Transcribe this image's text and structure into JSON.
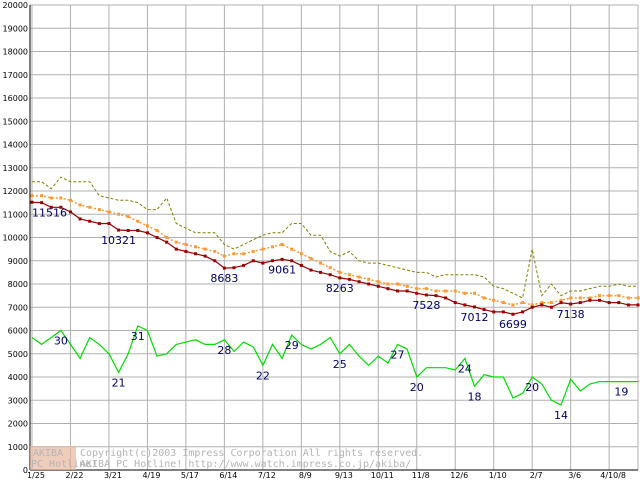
{
  "watermark": {
    "logo_top": "AKIBA",
    "logo_bottom": "PC Hotline!",
    "line1": "Copyright(c)2003 Impress Corporation All rights reserved.",
    "line2": "AKIBA PC Hotline!  http://www.watch.impress.co.jp/akiba/"
  },
  "colors": {
    "grid": "#b0b0b0",
    "red": "#990000",
    "orange": "#ff9933",
    "olive": "#808000",
    "green": "#00dd00",
    "label": "#000066"
  },
  "chart_data": {
    "type": "line",
    "title": "",
    "xlabel": "",
    "ylabel": "",
    "ylim": [
      0,
      20000
    ],
    "yticks": [
      0,
      1000,
      2000,
      3000,
      4000,
      5000,
      6000,
      7000,
      8000,
      9000,
      10000,
      11000,
      12000,
      13000,
      14000,
      15000,
      16000,
      17000,
      18000,
      19000,
      20000
    ],
    "xtick_labels": [
      "1/25",
      "2/22",
      "3/21",
      "4/19",
      "5/17",
      "6/14",
      "7/12",
      "8/9",
      "9/13",
      "10/11",
      "11/8",
      "12/6",
      "1/10",
      "2/7",
      "3/6",
      "4/10/8"
    ],
    "n_points": 64,
    "xtick_index": [
      0,
      4,
      8,
      12,
      16,
      20,
      24,
      28,
      32,
      36,
      40,
      44,
      48,
      52,
      56,
      60
    ],
    "grid": true,
    "series": [
      {
        "name": "",
        "style": "dashed",
        "color": "#808000",
        "values": [
          12400,
          12400,
          12100,
          12600,
          12400,
          12400,
          12400,
          11800,
          11700,
          11600,
          11600,
          11500,
          11200,
          11200,
          11700,
          10600,
          10400,
          10200,
          10200,
          10200,
          9700,
          9500,
          9700,
          9900,
          10100,
          10200,
          10200,
          10600,
          10600,
          10100,
          10100,
          9400,
          9200,
          9400,
          9000,
          8900,
          8900,
          8800,
          8700,
          8600,
          8500,
          8500,
          8300,
          8400,
          8400,
          8400,
          8400,
          8300,
          7900,
          7800,
          7600,
          7400,
          9500,
          7500,
          8000,
          7500,
          7700,
          7700,
          7800,
          7900,
          7900,
          8000,
          7900,
          7900
        ]
      },
      {
        "name": "",
        "style": "dotted-markers",
        "color": "#ff9933",
        "values": [
          11800,
          11800,
          11700,
          11700,
          11600,
          11400,
          11300,
          11200,
          11100,
          11000,
          10900,
          10700,
          10500,
          10300,
          10000,
          9800,
          9700,
          9600,
          9500,
          9400,
          9200,
          9300,
          9300,
          9400,
          9500,
          9600,
          9700,
          9500,
          9300,
          9100,
          8900,
          8700,
          8500,
          8400,
          8300,
          8200,
          8100,
          8000,
          8000,
          7900,
          7800,
          7800,
          7700,
          7700,
          7700,
          7600,
          7600,
          7400,
          7300,
          7200,
          7100,
          7200,
          7100,
          7200,
          7200,
          7300,
          7400,
          7400,
          7400,
          7500,
          7500,
          7500,
          7400,
          7400
        ]
      },
      {
        "name": "",
        "style": "solid-markers",
        "color": "#990000",
        "values": [
          11516,
          11500,
          11300,
          11300,
          11100,
          10800,
          10700,
          10600,
          10600,
          10321,
          10300,
          10300,
          10200,
          10000,
          9800,
          9500,
          9400,
          9300,
          9200,
          9000,
          8683,
          8700,
          8800,
          9000,
          8900,
          9000,
          9061,
          9000,
          8800,
          8600,
          8500,
          8400,
          8263,
          8200,
          8100,
          8000,
          7900,
          7800,
          7700,
          7700,
          7600,
          7528,
          7500,
          7400,
          7200,
          7100,
          7012,
          6900,
          6800,
          6800,
          6699,
          6800,
          7000,
          7100,
          7000,
          7200,
          7138,
          7200,
          7300,
          7300,
          7200,
          7200,
          7100,
          7100
        ]
      },
      {
        "name": "",
        "style": "solid",
        "color": "#00dd00",
        "values": [
          5700,
          5400,
          5700,
          6000,
          5400,
          4800,
          5700,
          5400,
          5000,
          4200,
          5000,
          6200,
          6000,
          4900,
          5000,
          5400,
          5500,
          5600,
          5400,
          5400,
          5600,
          5100,
          5500,
          5300,
          4500,
          5400,
          4800,
          5800,
          5400,
          5200,
          5400,
          5700,
          5000,
          5400,
          4900,
          4500,
          4900,
          4600,
          5400,
          5200,
          4000,
          4400,
          4400,
          4400,
          4300,
          4800,
          3600,
          4100,
          4000,
          4000,
          3100,
          3300,
          4000,
          3700,
          3000,
          2800,
          3900,
          3400,
          3700,
          3800,
          3800,
          3800,
          3800,
          3800
        ]
      }
    ],
    "data_labels": [
      {
        "series": 2,
        "index": 0,
        "text": "11516"
      },
      {
        "series": 2,
        "index": 9,
        "text": "10321"
      },
      {
        "series": 2,
        "index": 20,
        "text": "8683"
      },
      {
        "series": 2,
        "index": 26,
        "text": "9061"
      },
      {
        "series": 2,
        "index": 32,
        "text": "8263"
      },
      {
        "series": 2,
        "index": 41,
        "text": "7528"
      },
      {
        "series": 2,
        "index": 46,
        "text": "7012"
      },
      {
        "series": 2,
        "index": 50,
        "text": "6699"
      },
      {
        "series": 2,
        "index": 56,
        "text": "7138"
      },
      {
        "series": 3,
        "index": 3,
        "text": "30"
      },
      {
        "series": 3,
        "index": 9,
        "text": "21"
      },
      {
        "series": 3,
        "index": 11,
        "text": "31"
      },
      {
        "series": 3,
        "index": 20,
        "text": "28"
      },
      {
        "series": 3,
        "index": 24,
        "text": "22"
      },
      {
        "series": 3,
        "index": 27,
        "text": "29"
      },
      {
        "series": 3,
        "index": 32,
        "text": "25"
      },
      {
        "series": 3,
        "index": 38,
        "text": "27"
      },
      {
        "series": 3,
        "index": 40,
        "text": "20"
      },
      {
        "series": 3,
        "index": 45,
        "text": "24"
      },
      {
        "series": 3,
        "index": 46,
        "text": "18"
      },
      {
        "series": 3,
        "index": 52,
        "text": "20"
      },
      {
        "series": 3,
        "index": 55,
        "text": "14"
      },
      {
        "series": 3,
        "index": 62,
        "text": "19"
      }
    ]
  }
}
